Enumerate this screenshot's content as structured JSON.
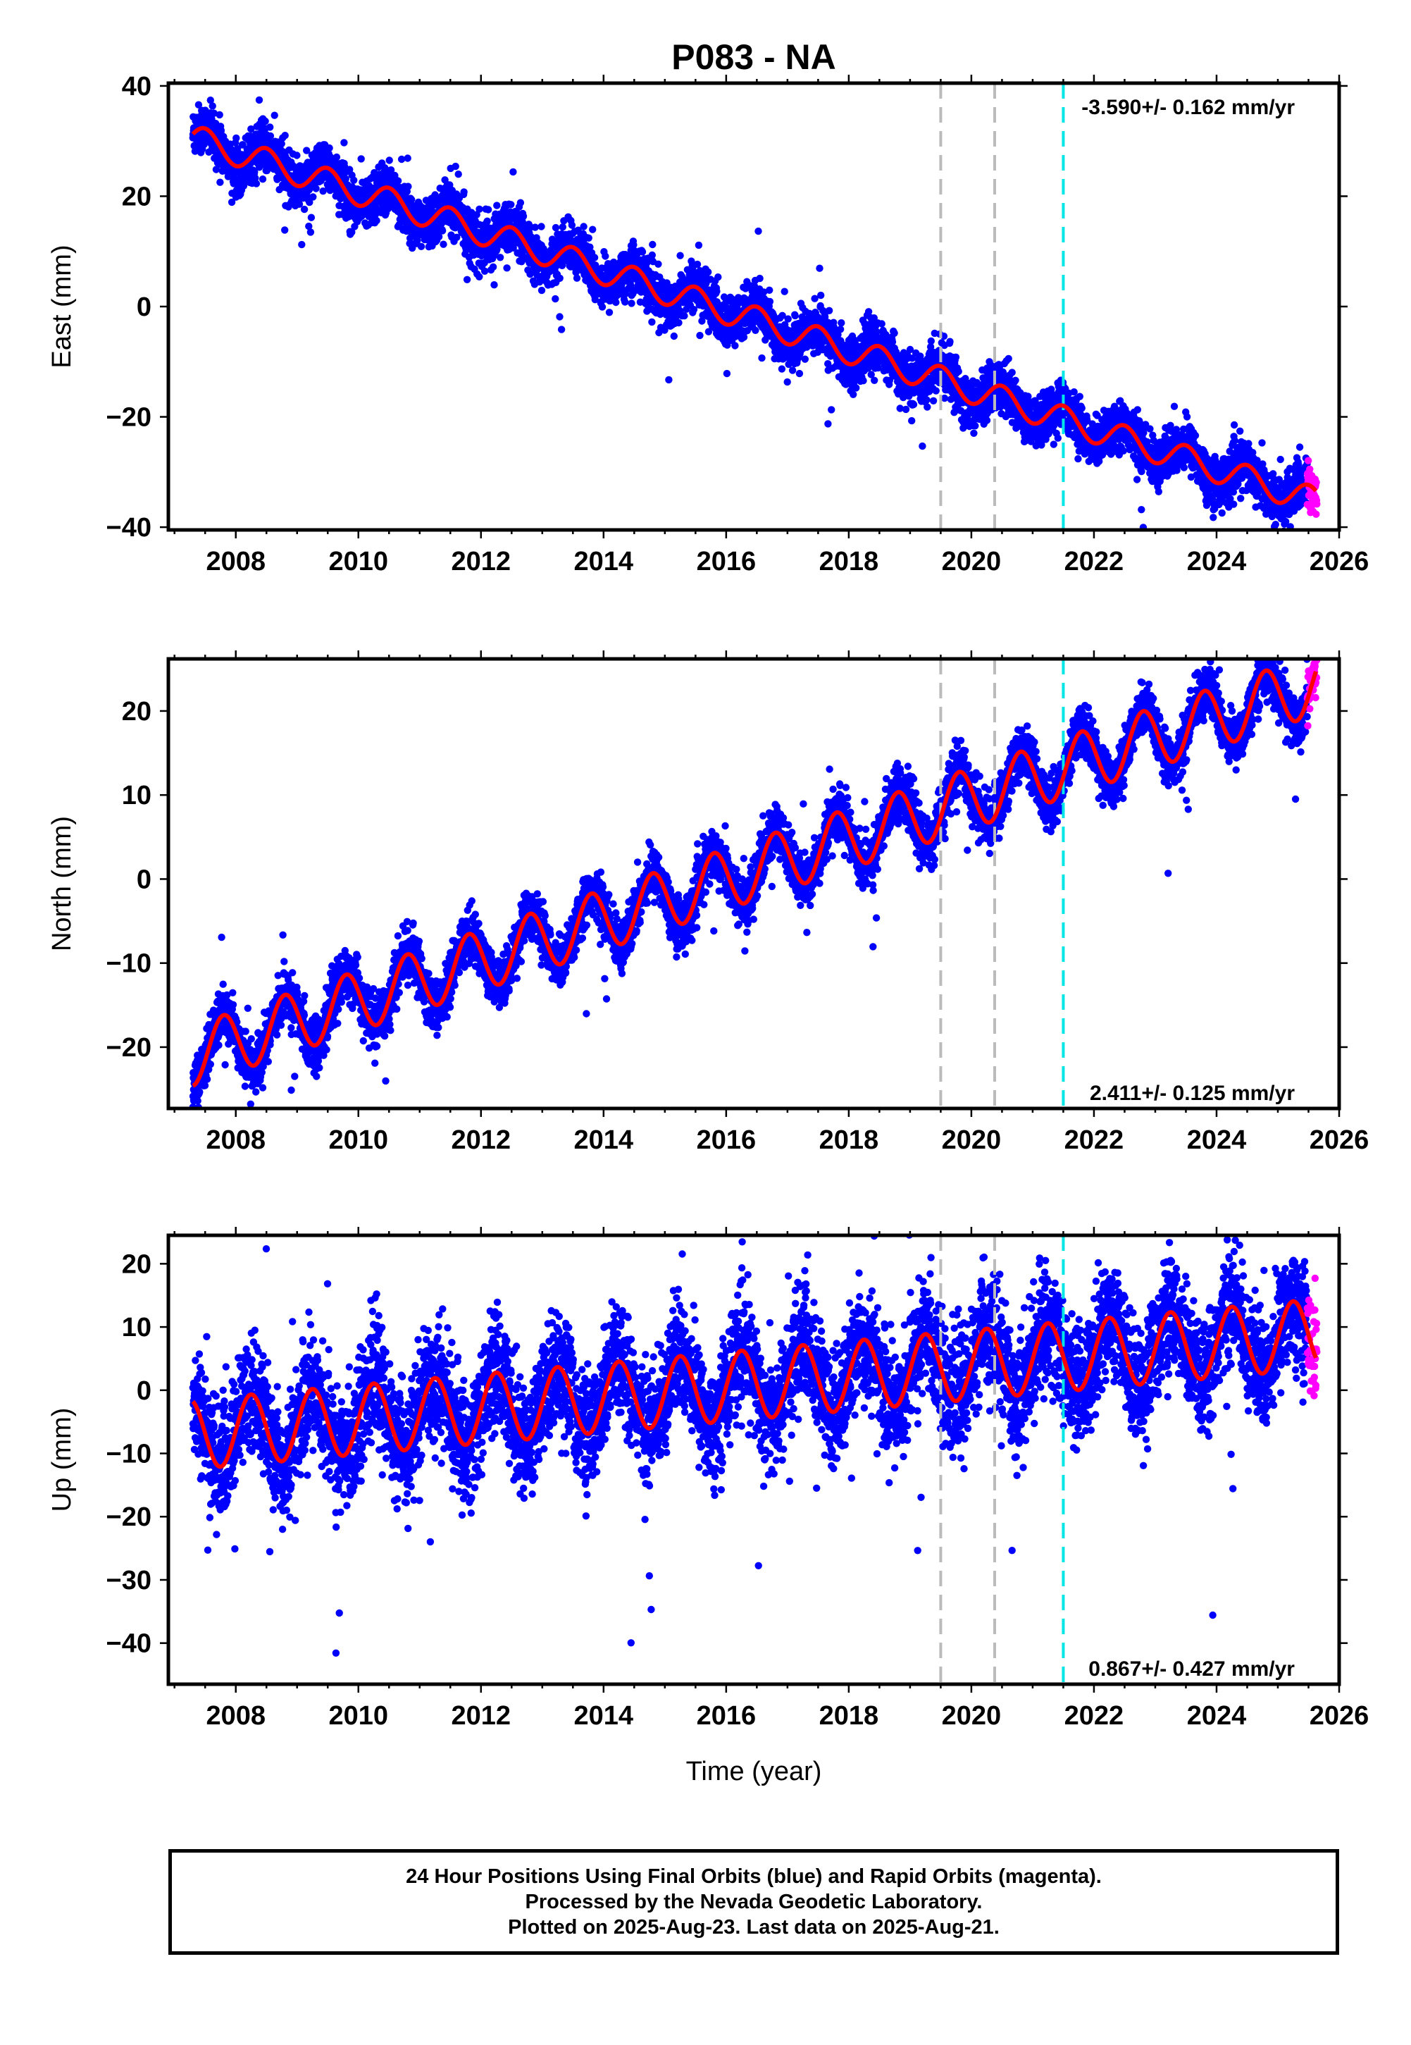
{
  "title": "P083 - NA",
  "colors": {
    "final_orbits": "#0000ff",
    "rapid_orbits": "#ff00ff",
    "model": "#ff0000",
    "event_gray": "#bbbbbb",
    "event_cyan": "#00e5e5"
  },
  "footer": {
    "line1": "24 Hour Positions Using Final Orbits (blue) and Rapid Orbits (magenta).",
    "line2": "Processed by the Nevada Geodetic Laboratory.",
    "line3": "Plotted on 2025-Aug-23. Last data on 2025-Aug-21."
  },
  "chart_data": [
    {
      "type": "scatter",
      "component": "East",
      "ylabel": "East (mm)",
      "xlabel": "",
      "xlim": [
        2006.9,
        2026.0
      ],
      "ylim": [
        -40.5,
        40.5
      ],
      "xticks": [
        2008,
        2010,
        2012,
        2014,
        2016,
        2018,
        2020,
        2022,
        2024,
        2026
      ],
      "yticks": [
        -40,
        -20,
        0,
        20,
        40
      ],
      "ytick_labels": [
        "−40",
        "−20",
        "0",
        "20",
        "40"
      ],
      "rate_label": "-3.590+/- 0.162 mm/yr",
      "rate_position": "top",
      "model": {
        "start": 2007.3,
        "end": 2025.62,
        "offset": 30.5,
        "rate": -3.59,
        "annual_amp": 2.5,
        "annual_phase": 0.25
      },
      "scatter": 2.2,
      "gaps": [],
      "events": {
        "gray": [
          2019.5,
          2020.38
        ],
        "cyan": [
          2021.5
        ]
      },
      "series": [
        {
          "name": "Final Orbits (blue)",
          "x_range": [
            2007.3,
            2025.48
          ]
        },
        {
          "name": "Rapid Orbits (magenta)",
          "x_range": [
            2025.48,
            2025.64
          ]
        },
        {
          "name": "Model",
          "x_range": [
            2007.3,
            2025.62
          ]
        }
      ]
    },
    {
      "type": "scatter",
      "component": "North",
      "ylabel": "North (mm)",
      "xlabel": "",
      "xlim": [
        2006.9,
        2026.0
      ],
      "ylim": [
        -27.3,
        26.2
      ],
      "xticks": [
        2008,
        2010,
        2012,
        2014,
        2016,
        2018,
        2020,
        2022,
        2024,
        2026
      ],
      "yticks": [
        -20,
        -10,
        0,
        10,
        20
      ],
      "ytick_labels": [
        "−20",
        "−10",
        "0",
        "10",
        "20"
      ],
      "rate_label": "2.411+/- 0.125 mm/yr",
      "rate_position": "bottom",
      "model": {
        "start": 2007.3,
        "end": 2025.62,
        "offset": -21.0,
        "rate": 2.411,
        "annual_amp": 3.6,
        "annual_phase": 0.55
      },
      "scatter": 1.5,
      "gaps": [],
      "events": {
        "gray": [
          2019.5,
          2020.38
        ],
        "cyan": [
          2021.5
        ]
      },
      "series": [
        {
          "name": "Final Orbits (blue)",
          "x_range": [
            2007.3,
            2025.48
          ]
        },
        {
          "name": "Rapid Orbits (magenta)",
          "x_range": [
            2025.48,
            2025.64
          ]
        },
        {
          "name": "Model",
          "x_range": [
            2007.3,
            2025.62
          ]
        }
      ]
    },
    {
      "type": "scatter",
      "component": "Up",
      "ylabel": "Up (mm)",
      "xlabel": "Time (year)",
      "xlim": [
        2006.9,
        2026.0
      ],
      "ylim": [
        -46.5,
        24.5
      ],
      "xticks": [
        2008,
        2010,
        2012,
        2014,
        2016,
        2018,
        2020,
        2022,
        2024,
        2026
      ],
      "yticks": [
        -40,
        -30,
        -20,
        -10,
        0,
        10,
        20
      ],
      "ytick_labels": [
        "−40",
        "−30",
        "−20",
        "−10",
        "0",
        "10",
        "20"
      ],
      "rate_label": "0.867+/- 0.427 mm/yr",
      "rate_position": "bottom",
      "model": {
        "start": 2007.3,
        "end": 2025.62,
        "offset": -7.0,
        "rate": 0.867,
        "annual_amp": 5.5,
        "annual_phase": 0.0
      },
      "scatter": 4.5,
      "gaps": [],
      "events": {
        "gray": [
          2019.5,
          2020.38
        ],
        "cyan": [
          2021.5
        ]
      },
      "series": [
        {
          "name": "Final Orbits (blue)",
          "x_range": [
            2007.3,
            2025.48
          ]
        },
        {
          "name": "Rapid Orbits (magenta)",
          "x_range": [
            2025.48,
            2025.64
          ]
        },
        {
          "name": "Model",
          "x_range": [
            2007.3,
            2025.62
          ]
        }
      ]
    }
  ]
}
